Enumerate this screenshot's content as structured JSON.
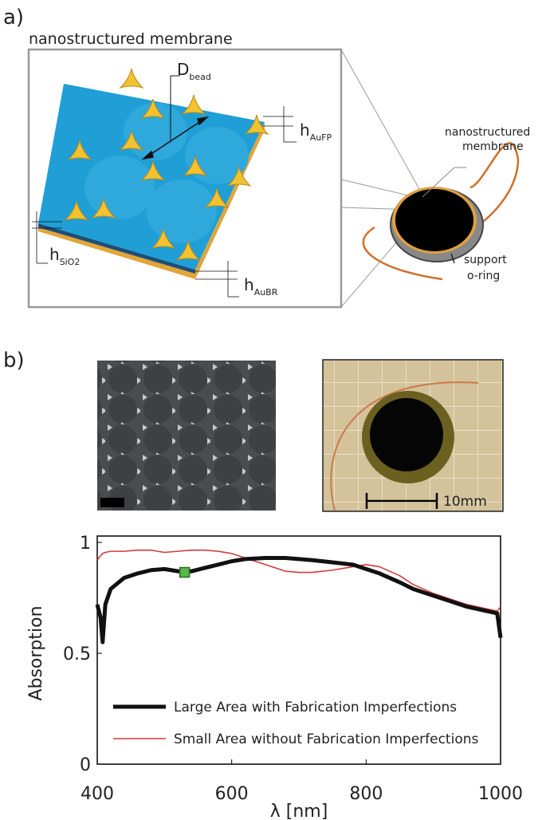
{
  "panel_a": {
    "label": "a)",
    "title": "nanostructured membrane",
    "d_bead": {
      "main": "D",
      "sub": "bead"
    },
    "h_aufp": {
      "main": "h",
      "sub": "AuFP"
    },
    "h_sio2": {
      "main": "h",
      "sub": "SiO2"
    },
    "h_aubr": {
      "main": "h",
      "sub": "AuBR"
    },
    "membrane_label": [
      "nanostructured",
      "membrane"
    ],
    "oring_label": [
      "support",
      "o-ring"
    ]
  },
  "panel_b": {
    "label": "b)",
    "scale_label": "10mm"
  },
  "chart_data": {
    "type": "line",
    "x_label": "λ [nm]",
    "y_label": "Absorption",
    "x": [
      400,
      405,
      408,
      412,
      420,
      440,
      460,
      480,
      500,
      520,
      540,
      560,
      580,
      600,
      620,
      650,
      680,
      700,
      720,
      750,
      780,
      800,
      820,
      850,
      870,
      900,
      920,
      950,
      980,
      995,
      1000
    ],
    "series": [
      {
        "name": "Large Area with Fabrication Imperfections",
        "color": "#111111",
        "width": 5,
        "values": [
          0.72,
          0.66,
          0.55,
          0.72,
          0.79,
          0.84,
          0.86,
          0.875,
          0.88,
          0.87,
          0.87,
          0.885,
          0.9,
          0.915,
          0.925,
          0.93,
          0.93,
          0.925,
          0.92,
          0.91,
          0.9,
          0.88,
          0.86,
          0.82,
          0.79,
          0.76,
          0.74,
          0.71,
          0.69,
          0.68,
          0.57
        ]
      },
      {
        "name": "Small Area without Fabrication Imperfections",
        "color": "#d43a3a",
        "width": 1.6,
        "values": [
          0.92,
          0.94,
          0.95,
          0.955,
          0.96,
          0.96,
          0.965,
          0.965,
          0.955,
          0.96,
          0.965,
          0.965,
          0.96,
          0.95,
          0.93,
          0.9,
          0.87,
          0.865,
          0.865,
          0.875,
          0.89,
          0.9,
          0.89,
          0.85,
          0.81,
          0.77,
          0.75,
          0.72,
          0.7,
          0.69,
          0.71
        ]
      }
    ],
    "marker": {
      "x": 530,
      "y": 0.865,
      "color": "#5cb84a"
    },
    "xlim": [
      400,
      1000
    ],
    "xticks": [
      400,
      600,
      800,
      1000
    ],
    "ylim": [
      0,
      1
    ],
    "yticks": [
      0,
      0.5,
      1
    ],
    "legend": "lower left"
  }
}
